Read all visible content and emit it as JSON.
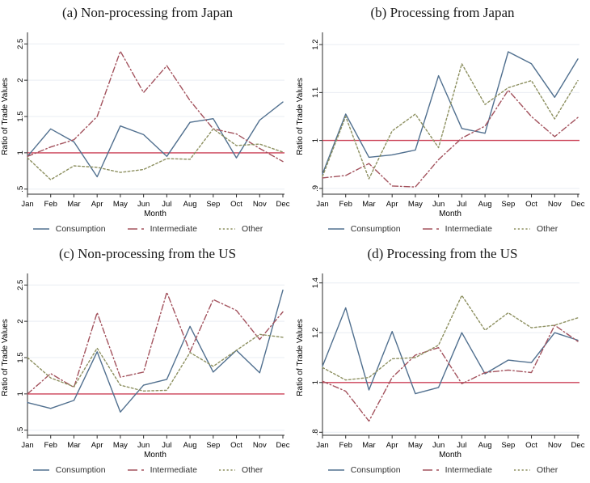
{
  "figure": {
    "background": "#ffffff",
    "ylabel": "Ratio of Trade Values",
    "xlabel": "Month"
  },
  "colors": {
    "consumption": "#51708f",
    "intermediate": "#a3525d",
    "other": "#8d9060",
    "refline": "#cc4257",
    "grid": "#e9edf3",
    "axis": "#2b2b2b"
  },
  "legend": {
    "items": [
      {
        "key": "consumption",
        "label": "Consumption",
        "style": "solid"
      },
      {
        "key": "intermediate",
        "label": "Intermediate",
        "style": "dashdot"
      },
      {
        "key": "other",
        "label": "Other",
        "style": "dash"
      }
    ]
  },
  "chart_data": [
    {
      "type": "line",
      "title": "(a) Non-processing from Japan",
      "xlabel": "Month",
      "ylabel": "Ratio of Trade Values",
      "categories": [
        "Jan",
        "Feb",
        "Mar",
        "Apr",
        "May",
        "Jun",
        "Jul",
        "Aug",
        "Sep",
        "Oct",
        "Nov",
        "Dec"
      ],
      "ylim": [
        0.43,
        2.57
      ],
      "yticks": [
        {
          "v": 0.5,
          "label": ".5"
        },
        {
          "v": 1,
          "label": "1"
        },
        {
          "v": 1.5,
          "label": "1.5"
        },
        {
          "v": 2,
          "label": "2"
        },
        {
          "v": 2.5,
          "label": "2.5"
        }
      ],
      "refline": 1,
      "grid": true,
      "legend_position": "bottom",
      "series": [
        {
          "key": "consumption",
          "name": "Consumption",
          "style": "solid",
          "values": [
            0.95,
            1.33,
            1.15,
            0.67,
            1.37,
            1.25,
            0.95,
            1.42,
            1.47,
            0.93,
            1.45,
            1.7
          ]
        },
        {
          "key": "intermediate",
          "name": "Intermediate",
          "style": "dashdot",
          "values": [
            0.95,
            1.08,
            1.18,
            1.5,
            2.4,
            1.83,
            2.2,
            1.72,
            1.33,
            1.26,
            1.06,
            0.88
          ]
        },
        {
          "key": "other",
          "name": "Other",
          "style": "dash",
          "values": [
            0.93,
            0.63,
            0.82,
            0.8,
            0.73,
            0.77,
            0.92,
            0.91,
            1.33,
            1.1,
            1.12,
            1.01
          ]
        }
      ]
    },
    {
      "type": "line",
      "title": "(b) Processing from Japan",
      "xlabel": "Month",
      "ylabel": "Ratio of Trade Values",
      "categories": [
        "Jan",
        "Feb",
        "Mar",
        "Apr",
        "May",
        "Jun",
        "Jul",
        "Aug",
        "Sep",
        "Oct",
        "Nov",
        "Dec"
      ],
      "ylim": [
        0.888,
        1.212
      ],
      "yticks": [
        {
          "v": 0.9,
          "label": ".9"
        },
        {
          "v": 1,
          "label": "1"
        },
        {
          "v": 1.1,
          "label": "1.1"
        },
        {
          "v": 1.2,
          "label": "1.2"
        }
      ],
      "refline": 1,
      "grid": true,
      "legend_position": "bottom",
      "series": [
        {
          "key": "consumption",
          "name": "Consumption",
          "style": "solid",
          "values": [
            0.93,
            1.055,
            0.965,
            0.97,
            0.98,
            1.135,
            1.025,
            1.015,
            1.185,
            1.16,
            1.09,
            1.17
          ]
        },
        {
          "key": "intermediate",
          "name": "Intermediate",
          "style": "dashdot",
          "values": [
            0.922,
            0.927,
            0.952,
            0.905,
            0.903,
            0.96,
            1.005,
            1.03,
            1.105,
            1.05,
            1.008,
            1.048
          ]
        },
        {
          "key": "other",
          "name": "Other",
          "style": "dash",
          "values": [
            0.925,
            1.05,
            0.92,
            1.02,
            1.055,
            0.985,
            1.16,
            1.075,
            1.11,
            1.125,
            1.045,
            1.125
          ]
        }
      ]
    },
    {
      "type": "line",
      "title": "(c) Non-processing from the US",
      "xlabel": "Month",
      "ylabel": "Ratio of Trade Values",
      "categories": [
        "Jan",
        "Feb",
        "Mar",
        "Apr",
        "May",
        "Jun",
        "Jul",
        "Aug",
        "Sep",
        "Oct",
        "Nov",
        "Dec"
      ],
      "ylim": [
        0.43,
        2.57
      ],
      "yticks": [
        {
          "v": 0.5,
          "label": ".5"
        },
        {
          "v": 1,
          "label": "1"
        },
        {
          "v": 1.5,
          "label": "1.5"
        },
        {
          "v": 2,
          "label": "2"
        },
        {
          "v": 2.5,
          "label": "2.5"
        }
      ],
      "refline": 1,
      "grid": true,
      "legend_position": "bottom",
      "series": [
        {
          "key": "consumption",
          "name": "Consumption",
          "style": "solid",
          "values": [
            0.88,
            0.8,
            0.91,
            1.58,
            0.75,
            1.12,
            1.2,
            1.93,
            1.3,
            1.6,
            1.29,
            2.43
          ]
        },
        {
          "key": "intermediate",
          "name": "Intermediate",
          "style": "dashdot",
          "values": [
            1.0,
            1.28,
            1.09,
            2.12,
            1.23,
            1.3,
            2.4,
            1.58,
            2.3,
            2.15,
            1.75,
            2.13
          ]
        },
        {
          "key": "other",
          "name": "Other",
          "style": "dash",
          "values": [
            1.5,
            1.22,
            1.1,
            1.63,
            1.12,
            1.04,
            1.05,
            1.57,
            1.38,
            1.6,
            1.82,
            1.78
          ]
        }
      ]
    },
    {
      "type": "line",
      "title": "(d) Processing from the US",
      "xlabel": "Month",
      "ylabel": "Ratio of Trade Values",
      "categories": [
        "Jan",
        "Feb",
        "Mar",
        "Apr",
        "May",
        "Jun",
        "Jul",
        "Aug",
        "Sep",
        "Oct",
        "Nov",
        "Dec"
      ],
      "ylim": [
        0.788,
        1.412
      ],
      "yticks": [
        {
          "v": 0.8,
          "label": ".8"
        },
        {
          "v": 1,
          "label": "1"
        },
        {
          "v": 1.2,
          "label": "1.2"
        },
        {
          "v": 1.4,
          "label": "1.4"
        }
      ],
      "refline": 1,
      "grid": true,
      "legend_position": "bottom",
      "series": [
        {
          "key": "consumption",
          "name": "Consumption",
          "style": "solid",
          "values": [
            1.065,
            1.3,
            0.97,
            1.205,
            0.955,
            0.98,
            1.2,
            1.035,
            1.09,
            1.08,
            1.2,
            1.17
          ]
        },
        {
          "key": "intermediate",
          "name": "Intermediate",
          "style": "dashdot",
          "values": [
            1.005,
            0.965,
            0.845,
            1.02,
            1.11,
            1.14,
            0.995,
            1.04,
            1.05,
            1.04,
            1.23,
            1.165
          ]
        },
        {
          "key": "other",
          "name": "Other",
          "style": "dash",
          "values": [
            1.06,
            1.01,
            1.02,
            1.095,
            1.1,
            1.15,
            1.35,
            1.21,
            1.28,
            1.22,
            1.23,
            1.26
          ]
        }
      ]
    }
  ]
}
